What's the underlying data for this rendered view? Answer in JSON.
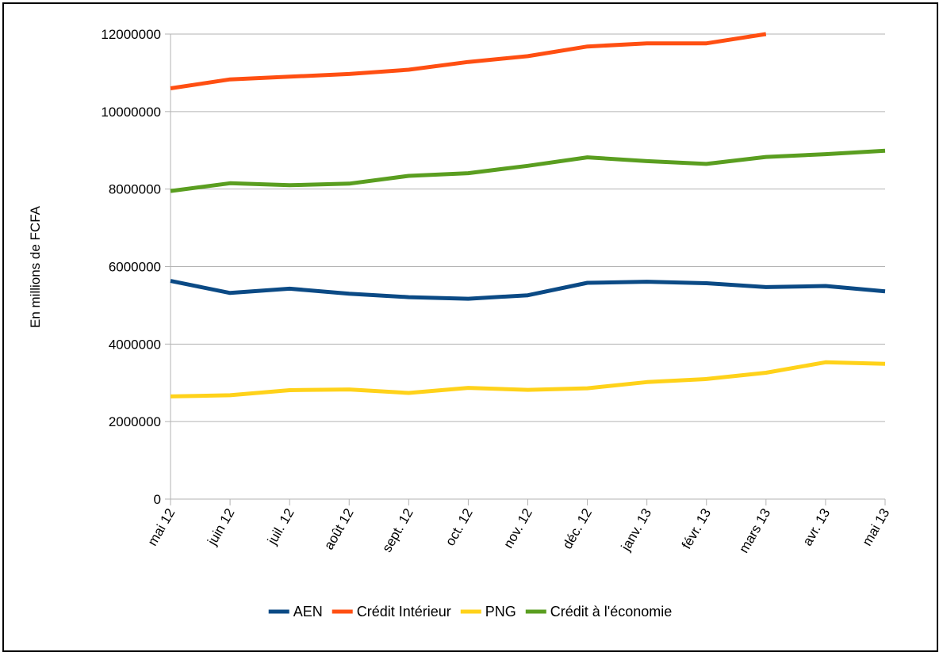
{
  "chart_data": {
    "type": "line",
    "title": "",
    "xlabel": "",
    "ylabel": "En millions de FCFA",
    "ylim": [
      0,
      12000000
    ],
    "yticks": [
      "0",
      "2000000",
      "4000000",
      "6000000",
      "8000000",
      "10000000",
      "12000000"
    ],
    "grid": true,
    "legend_position": "bottom",
    "categories": [
      "mai 12",
      "juin 12",
      "juil. 12",
      "août 12",
      "sept. 12",
      "oct. 12",
      "nov. 12",
      "déc. 12",
      "janv. 13",
      "févr. 13",
      "mars 13",
      "avr. 13",
      "mai 13"
    ],
    "series": [
      {
        "name": "AEN",
        "color": "#0b4a85",
        "values": [
          5630000,
          5320000,
          5430000,
          5300000,
          5210000,
          5170000,
          5260000,
          5580000,
          5610000,
          5570000,
          5470000,
          5500000,
          5360000
        ]
      },
      {
        "name": "Crédit Intérieur",
        "color": "#ff4f12",
        "values": [
          10600000,
          10830000,
          10900000,
          10970000,
          11080000,
          11280000,
          11430000,
          11680000,
          11760000,
          11760000,
          12000000,
          null,
          null
        ]
      },
      {
        "name": "PNG",
        "color": "#ffd21a",
        "values": [
          2650000,
          2680000,
          2810000,
          2830000,
          2740000,
          2870000,
          2820000,
          2860000,
          3020000,
          3100000,
          3260000,
          3530000,
          3490000
        ]
      },
      {
        "name": "Crédit à l'économie",
        "color": "#5a9e20",
        "values": [
          7950000,
          8150000,
          8100000,
          8140000,
          8340000,
          8410000,
          8600000,
          8820000,
          8720000,
          8650000,
          8830000,
          8900000,
          8990000
        ]
      }
    ]
  }
}
